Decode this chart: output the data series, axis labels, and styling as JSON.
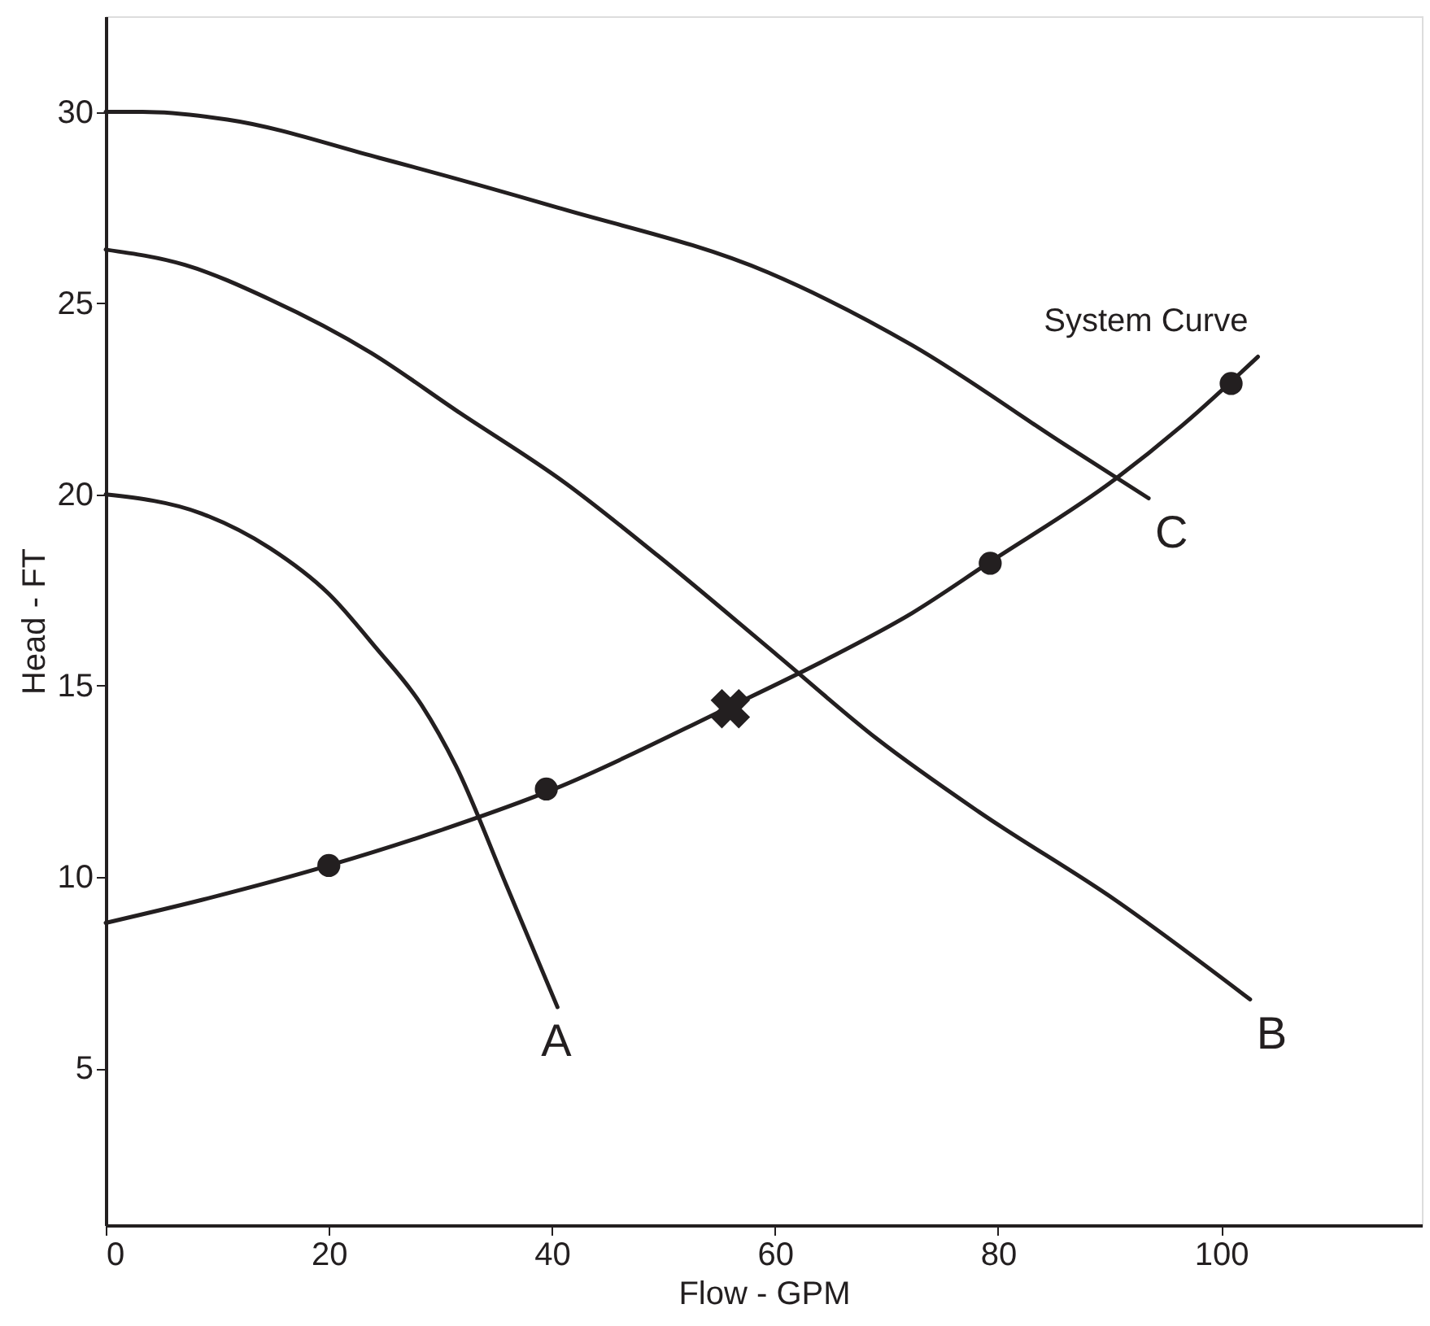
{
  "chart_data": {
    "type": "line",
    "xlabel": "Flow - GPM",
    "ylabel": "Head - FT",
    "xlim": [
      0,
      118
    ],
    "ylim": [
      0.9,
      32.5
    ],
    "xticks": [
      0,
      20,
      40,
      60,
      80,
      100
    ],
    "yticks": [
      5,
      10,
      15,
      20,
      25,
      30
    ],
    "grid": false,
    "legend": false,
    "line_style": "solid",
    "marker": "none",
    "series": [
      {
        "name": "A",
        "color": "#231f20",
        "x": [
          0,
          8.6,
          14.7,
          20,
          24.2,
          28.3,
          31.4,
          35.9,
          40.5
        ],
        "values": [
          20,
          19.5,
          18.6,
          17.4,
          16,
          14.5,
          12.9,
          9.8,
          6.6
        ]
      },
      {
        "name": "B",
        "color": "#231f20",
        "x": [
          0,
          7.1,
          14.7,
          23.8,
          31.4,
          41.2,
          49.5,
          60.2,
          69.2,
          78.3,
          90.5,
          102.6
        ],
        "values": [
          26.4,
          26,
          25.1,
          23.7,
          22.2,
          20.3,
          18.4,
          15.8,
          13.6,
          11.7,
          9.4,
          6.8
        ]
      },
      {
        "name": "C",
        "color": "#231f20",
        "x": [
          0,
          3.3,
          10.9,
          24.5,
          40.5,
          59.4,
          72.3,
          86,
          93.5
        ],
        "values": [
          30,
          30,
          29.8,
          28.8,
          27.5,
          25.8,
          23.9,
          21.3,
          19.9
        ]
      },
      {
        "name": "System Curve",
        "color": "#231f20",
        "x": [
          0,
          8.6,
          20,
          29.8,
          40.2,
          55.6,
          64.7,
          72.3,
          79.1,
          90.5,
          96.5,
          103.3
        ],
        "values": [
          8.8,
          9.4,
          10.3,
          11.2,
          12.3,
          14.4,
          15.7,
          16.9,
          18.2,
          20.4,
          21.8,
          23.6
        ]
      },
      {
        "type": "scatter",
        "marker": "circle",
        "color": "#231f20",
        "x": [
          20,
          39.5,
          79.3,
          100.9
        ],
        "values": [
          10.3,
          12.3,
          18.2,
          22.9
        ]
      },
      {
        "type": "scatter",
        "marker": "cross",
        "color": "#231f20",
        "x": [
          56
        ],
        "values": [
          14.4
        ]
      }
    ]
  }
}
